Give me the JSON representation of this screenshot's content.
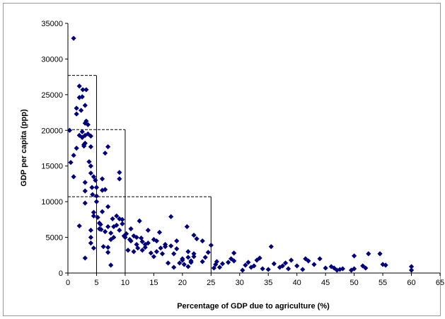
{
  "chart_data": {
    "type": "scatter",
    "title": "",
    "xlabel": "Percentage of GDP due to agriculture (%)",
    "ylabel": "GDP per capita (ppp)",
    "xlim": [
      0,
      65
    ],
    "ylim": [
      0,
      35000
    ],
    "x_ticks": [
      0,
      5,
      10,
      15,
      20,
      25,
      30,
      35,
      40,
      45,
      50,
      55,
      60,
      65
    ],
    "y_ticks": [
      0,
      5000,
      10000,
      15000,
      20000,
      25000,
      30000,
      35000
    ],
    "grid": false,
    "legend": "none",
    "marker": "diamond",
    "marker_color": "#00007f",
    "reference_boxes": [
      {
        "x": [
          0,
          5
        ],
        "y": [
          0,
          27700
        ]
      },
      {
        "x": [
          0,
          10
        ],
        "y": [
          0,
          20100
        ]
      },
      {
        "x": [
          0,
          25
        ],
        "y": [
          0,
          10700
        ]
      }
    ],
    "series": [
      {
        "points": [
          [
            1.0,
            32900
          ],
          [
            0.3,
            20000
          ],
          [
            0.5,
            15500
          ],
          [
            1.0,
            13500
          ],
          [
            1.0,
            16500
          ],
          [
            1.5,
            17500
          ],
          [
            1.5,
            22300
          ],
          [
            1.5,
            23100
          ],
          [
            2.0,
            19300
          ],
          [
            2.0,
            24600
          ],
          [
            2.0,
            26200
          ],
          [
            2.3,
            22800
          ],
          [
            2.5,
            24700
          ],
          [
            2.6,
            25700
          ],
          [
            2.5,
            19800
          ],
          [
            2.5,
            19000
          ],
          [
            2.8,
            18000
          ],
          [
            2.8,
            17800
          ],
          [
            3.0,
            18200
          ],
          [
            3.0,
            19300
          ],
          [
            3.0,
            21000
          ],
          [
            3.0,
            23500
          ],
          [
            3.0,
            11500
          ],
          [
            3.0,
            12700
          ],
          [
            3.0,
            9800
          ],
          [
            3.2,
            25700
          ],
          [
            3.2,
            21300
          ],
          [
            3.5,
            20800
          ],
          [
            3.5,
            19500
          ],
          [
            3.7,
            15600
          ],
          [
            4.0,
            19200
          ],
          [
            4.0,
            17700
          ],
          [
            4.0,
            15000
          ],
          [
            4.0,
            14000
          ],
          [
            4.2,
            12000
          ],
          [
            4.3,
            11000
          ],
          [
            4.5,
            8500
          ],
          [
            4.5,
            8000
          ],
          [
            2.0,
            6600
          ],
          [
            3.0,
            2100
          ],
          [
            4.0,
            6000
          ],
          [
            4.0,
            5000
          ],
          [
            4.0,
            4200
          ],
          [
            4.5,
            3500
          ],
          [
            4.5,
            13500
          ],
          [
            4.8,
            13000
          ],
          [
            5.0,
            12000
          ],
          [
            5.0,
            10800
          ],
          [
            5.0,
            10000
          ],
          [
            5.2,
            7800
          ],
          [
            5.5,
            7000
          ],
          [
            5.5,
            6200
          ],
          [
            5.7,
            6800
          ],
          [
            5.8,
            6100
          ],
          [
            6.0,
            8600
          ],
          [
            6.0,
            11600
          ],
          [
            6.0,
            13200
          ],
          [
            6.2,
            3700
          ],
          [
            6.5,
            5800
          ],
          [
            6.5,
            11700
          ],
          [
            6.5,
            16800
          ],
          [
            7.0,
            17700
          ],
          [
            7.0,
            9300
          ],
          [
            7.0,
            6500
          ],
          [
            7.0,
            3600
          ],
          [
            7.0,
            2900
          ],
          [
            7.5,
            4700
          ],
          [
            7.5,
            5600
          ],
          [
            7.5,
            1100
          ],
          [
            7.8,
            7600
          ],
          [
            8.0,
            6500
          ],
          [
            8.0,
            5000
          ],
          [
            8.5,
            8000
          ],
          [
            8.5,
            6700
          ],
          [
            9.0,
            6000
          ],
          [
            9.0,
            7600
          ],
          [
            9.0,
            14100
          ],
          [
            9.0,
            13200
          ],
          [
            9.5,
            7500
          ],
          [
            9.5,
            6900
          ],
          [
            9.8,
            5200
          ],
          [
            10.0,
            5000
          ],
          [
            10.2,
            5500
          ],
          [
            10.5,
            3200
          ],
          [
            10.8,
            4700
          ],
          [
            11.0,
            6200
          ],
          [
            11.0,
            4500
          ],
          [
            11.5,
            5200
          ],
          [
            11.5,
            3000
          ],
          [
            12.0,
            5000
          ],
          [
            12.0,
            4000
          ],
          [
            12.2,
            3500
          ],
          [
            12.5,
            7300
          ],
          [
            12.8,
            4900
          ],
          [
            13.0,
            4400
          ],
          [
            13.0,
            3200
          ],
          [
            13.5,
            4000
          ],
          [
            13.5,
            3600
          ],
          [
            14.0,
            6000
          ],
          [
            14.0,
            4200
          ],
          [
            14.5,
            2800
          ],
          [
            15.0,
            4700
          ],
          [
            15.0,
            2300
          ],
          [
            15.5,
            3000
          ],
          [
            15.5,
            4500
          ],
          [
            16.0,
            5700
          ],
          [
            16.2,
            3500
          ],
          [
            16.5,
            2700
          ],
          [
            17.0,
            4000
          ],
          [
            17.0,
            3700
          ],
          [
            17.5,
            1400
          ],
          [
            18.0,
            7900
          ],
          [
            18.0,
            3800
          ],
          [
            18.5,
            800
          ],
          [
            18.5,
            2700
          ],
          [
            19.0,
            3400
          ],
          [
            19.0,
            4500
          ],
          [
            19.5,
            1400
          ],
          [
            20.0,
            2000
          ],
          [
            20.0,
            1800
          ],
          [
            20.3,
            1200
          ],
          [
            20.8,
            6500
          ],
          [
            21.0,
            3000
          ],
          [
            21.0,
            2200
          ],
          [
            21.0,
            900
          ],
          [
            21.5,
            1500
          ],
          [
            21.5,
            1700
          ],
          [
            22.0,
            5300
          ],
          [
            22.0,
            2300
          ],
          [
            22.0,
            2700
          ],
          [
            22.5,
            4800
          ],
          [
            23.5,
            4500
          ],
          [
            23.5,
            1600
          ],
          [
            24.0,
            2200
          ],
          [
            24.5,
            2900
          ],
          [
            25.0,
            3900
          ],
          [
            25.5,
            700
          ],
          [
            25.8,
            1200
          ],
          [
            26.0,
            1600
          ],
          [
            26.5,
            800
          ],
          [
            27.0,
            1300
          ],
          [
            28.0,
            1500
          ],
          [
            28.5,
            2000
          ],
          [
            29.0,
            2800
          ],
          [
            29.0,
            1700
          ],
          [
            30.5,
            400
          ],
          [
            31.0,
            1100
          ],
          [
            31.5,
            1500
          ],
          [
            32.0,
            800
          ],
          [
            32.5,
            1000
          ],
          [
            33.0,
            1800
          ],
          [
            33.5,
            2100
          ],
          [
            34.0,
            600
          ],
          [
            35.0,
            500
          ],
          [
            35.5,
            3700
          ],
          [
            36.0,
            1300
          ],
          [
            37.0,
            800
          ],
          [
            37.5,
            1000
          ],
          [
            38.0,
            1400
          ],
          [
            38.5,
            600
          ],
          [
            39.0,
            1800
          ],
          [
            40.0,
            1000
          ],
          [
            41.0,
            500
          ],
          [
            41.5,
            2000
          ],
          [
            42.0,
            1700
          ],
          [
            43.0,
            1200
          ],
          [
            44.0,
            2000
          ],
          [
            45.0,
            700
          ],
          [
            46.0,
            900
          ],
          [
            46.5,
            700
          ],
          [
            47.0,
            400
          ],
          [
            47.5,
            500
          ],
          [
            48.0,
            600
          ],
          [
            49.5,
            400
          ],
          [
            50.0,
            600
          ],
          [
            50.0,
            2400
          ],
          [
            51.5,
            1000
          ],
          [
            52.0,
            700
          ],
          [
            52.5,
            2700
          ],
          [
            54.5,
            2700
          ],
          [
            55.0,
            1200
          ],
          [
            55.5,
            1100
          ],
          [
            60.0,
            900
          ],
          [
            60.0,
            400
          ]
        ]
      }
    ]
  }
}
